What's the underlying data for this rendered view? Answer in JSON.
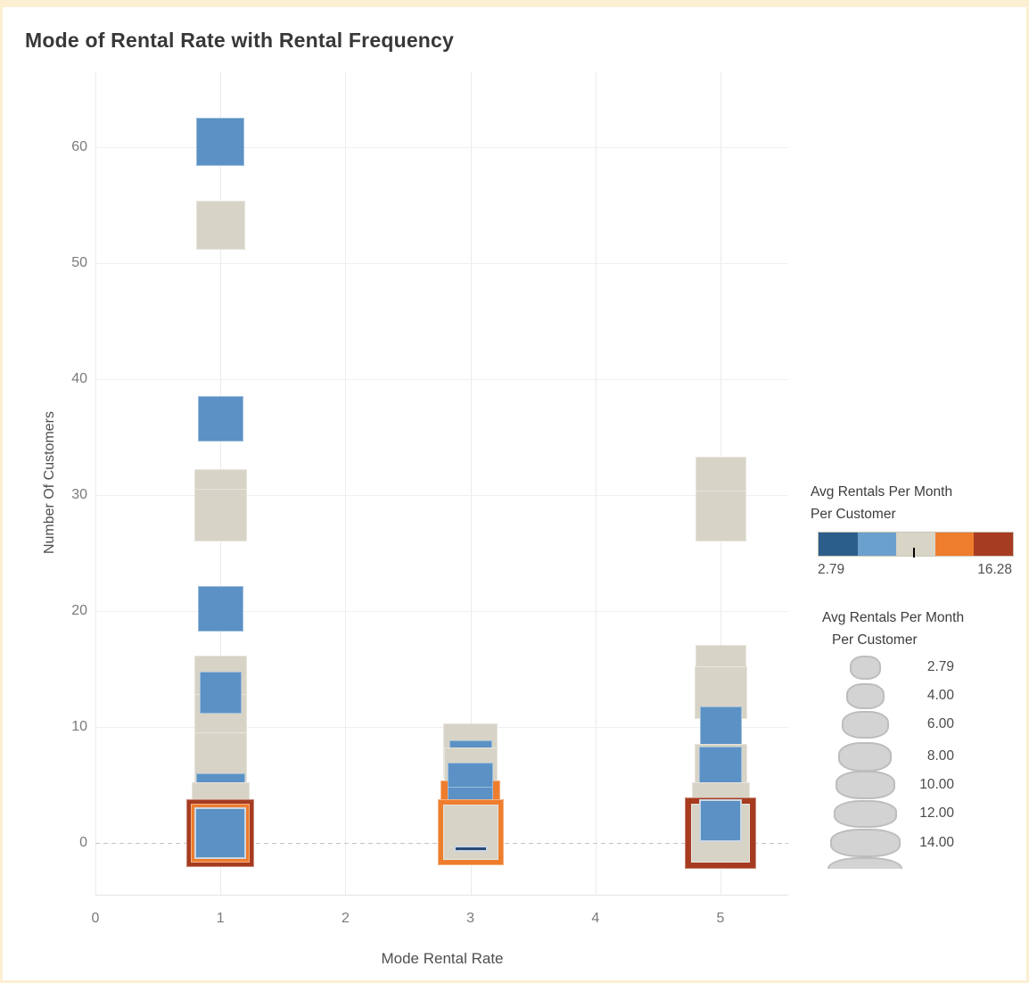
{
  "title": "Mode of Rental Rate with Rental Frequency",
  "axes": {
    "x_title": "Mode Rental Rate",
    "y_title": "Number Of Customers",
    "x_tick_labels": [
      "0",
      "1",
      "2",
      "3",
      "4",
      "5"
    ],
    "y_tick_labels": [
      "0",
      "10",
      "20",
      "30",
      "40",
      "50",
      "60"
    ]
  },
  "color_legend": {
    "title_line1": "Avg Rentals Per Month",
    "title_line2": "Per Customer",
    "min_label": "2.79",
    "max_label": "16.28",
    "palette": [
      "#2c5e8c",
      "#6aa0cd",
      "#d8d4c6",
      "#ee7d2e",
      "#a63c22"
    ]
  },
  "size_legend": {
    "title_line1": "Avg Rentals Per Month",
    "title_line2": "Per Customer",
    "labels": [
      "2.79",
      "4.00",
      "6.00",
      "8.00",
      "10.00",
      "12.00",
      "14.00"
    ]
  },
  "chart_data": {
    "type": "scatter",
    "title": "Mode of Rental Rate with Rental Frequency",
    "xlabel": "Mode Rental Rate",
    "ylabel": "Number Of Customers",
    "xlim": [
      0,
      5.55
    ],
    "ylim": [
      -4.5,
      66.5
    ],
    "x_ticks": [
      0,
      1,
      2,
      3,
      4,
      5
    ],
    "y_ticks": [
      0,
      10,
      20,
      30,
      40,
      50,
      60
    ],
    "grid": true,
    "zero_line": "dashed",
    "legend_position": "right",
    "color_scale": {
      "label": "Avg Rentals Per Month Per Customer",
      "min": 2.79,
      "max": 16.28,
      "colors": {
        "navy": "#2a4a75",
        "blue": "#5b91c4",
        "beige": "#d7d3c6",
        "orange": "#ee7d2e",
        "brick": "#a63b20"
      }
    },
    "size_scale": {
      "label": "Avg Rentals Per Month Per Customer",
      "values": [
        2.79,
        4.0,
        6.0,
        8.0,
        10.0,
        12.0,
        14.0
      ]
    },
    "marks": [
      {
        "x": 1,
        "y": 60.5,
        "size": 54,
        "color": "blue"
      },
      {
        "x": 1,
        "y": 53.3,
        "size": 55,
        "color": "beige"
      },
      {
        "x": 1,
        "y": 36.6,
        "size": 51,
        "color": "blue"
      },
      {
        "x": 1,
        "y": 30.0,
        "size": 59,
        "color": "beige"
      },
      {
        "x": 1,
        "y": 28.3,
        "size": 59,
        "color": "beige"
      },
      {
        "x": 1,
        "y": 20.2,
        "size": 51,
        "color": "blue"
      },
      {
        "x": 1,
        "y": 13.9,
        "size": 59,
        "color": "beige"
      },
      {
        "x": 1,
        "y": 10.6,
        "size": 59,
        "color": "beige"
      },
      {
        "x": 1,
        "y": 13.0,
        "size": 47,
        "color": "blue"
      },
      {
        "x": 1,
        "y": 7.3,
        "size": 59,
        "color": "beige"
      },
      {
        "x": 1,
        "y": 3.9,
        "size": 55,
        "color": "blue"
      },
      {
        "x": 1,
        "y": 2.7,
        "size": 65,
        "color": "beige"
      },
      {
        "x": 1,
        "y": 0.85,
        "size": 76,
        "color": "brick"
      },
      {
        "x": 1,
        "y": 0.85,
        "size": 66,
        "color": "orange"
      },
      {
        "x": 1,
        "y": 0.85,
        "size": 58,
        "color": "blue",
        "border": "light"
      },
      {
        "x": 3,
        "y": 8.0,
        "size": 61,
        "color": "beige"
      },
      {
        "x": 3,
        "y": 7.0,
        "size": 48,
        "color": "blue"
      },
      {
        "x": 3,
        "y": 5.9,
        "size": 60,
        "color": "beige"
      },
      {
        "x": 3,
        "y": 2.8,
        "size": 67,
        "color": "orange"
      },
      {
        "x": 3,
        "y": 5.0,
        "size": 51,
        "color": "blue"
      },
      {
        "x": 3,
        "y": 2.9,
        "size": 51,
        "color": "blue"
      },
      {
        "x": 3,
        "y": 0.96,
        "size": 74,
        "color": "orange"
      },
      {
        "x": 3,
        "y": 0.96,
        "size": 62,
        "color": "beige"
      },
      {
        "x": 3,
        "y": -0.5,
        "size": 38,
        "h": 7,
        "color": "navy",
        "border": "light"
      },
      {
        "x": 5,
        "y": 31.1,
        "size": 57,
        "color": "beige"
      },
      {
        "x": 5,
        "y": 28.2,
        "size": 57,
        "color": "beige"
      },
      {
        "x": 5,
        "y": 14.9,
        "size": 57,
        "color": "beige"
      },
      {
        "x": 5,
        "y": 13.0,
        "size": 59,
        "color": "beige"
      },
      {
        "x": 5,
        "y": 10.0,
        "size": 47,
        "color": "blue"
      },
      {
        "x": 5,
        "y": 6.3,
        "size": 59,
        "color": "beige"
      },
      {
        "x": 5,
        "y": 6.5,
        "size": 48,
        "color": "blue"
      },
      {
        "x": 5,
        "y": 2.7,
        "size": 65,
        "color": "beige"
      },
      {
        "x": 5,
        "y": 0.85,
        "size": 80,
        "color": "brick"
      },
      {
        "x": 5,
        "y": 0.85,
        "size": 66,
        "color": "beige"
      },
      {
        "x": 5,
        "y": 1.9,
        "size": 48,
        "color": "blue",
        "border": "light"
      }
    ]
  }
}
